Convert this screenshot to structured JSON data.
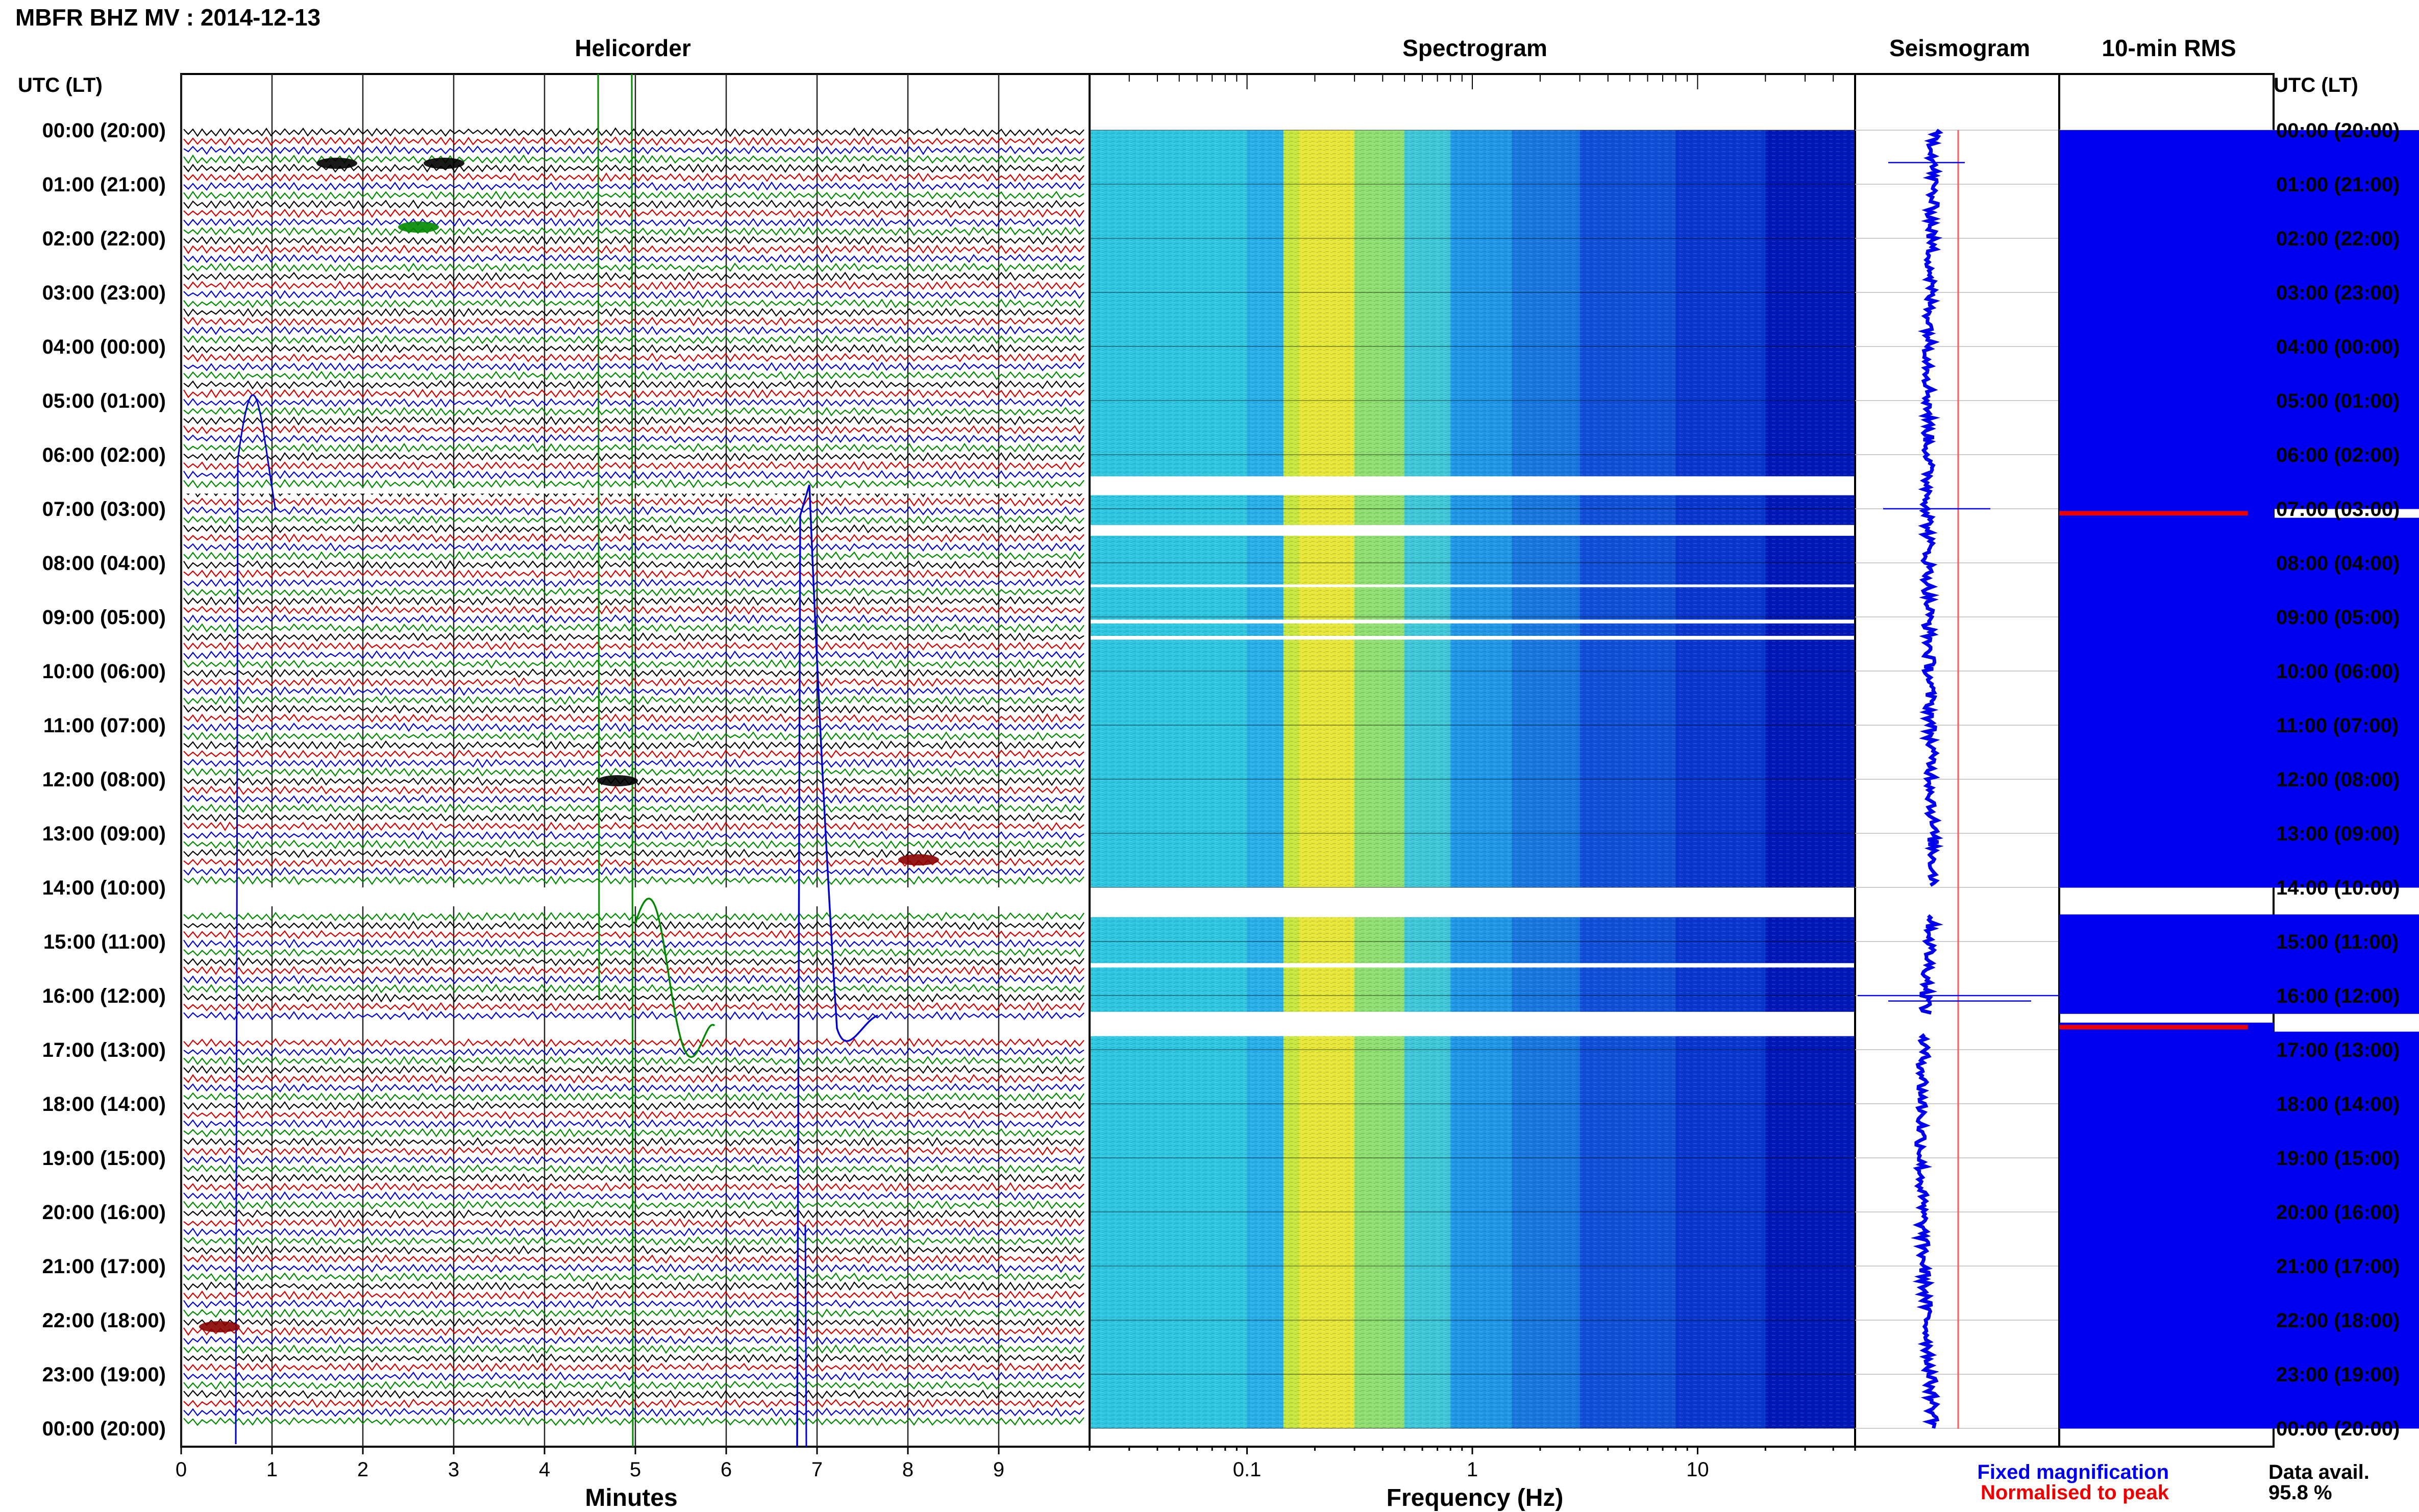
{
  "header": {
    "title": "MBFR BHZ MV : 2014-12-13",
    "utc_lt_label": "UTC (LT)"
  },
  "panels": {
    "helicorder": "Helicorder",
    "spectrogram": "Spectrogram",
    "seismogram": "Seismogram",
    "rms": "10-min RMS"
  },
  "legend": {
    "fixed_magnification": "Fixed magnification",
    "normalised_to_peak": "Normalised to peak",
    "fixed_color": "#0000ee",
    "normalised_color": "#ee0000"
  },
  "data_availability": {
    "label": "Data avail.",
    "value": "95.8 %"
  },
  "colors": {
    "trace_cycle": [
      "#000000",
      "#cc0000",
      "#0000cc",
      "#008800"
    ],
    "rms_fill": "#0000ee",
    "rms_peak": "#ee0000"
  },
  "chart_data": {
    "type": "heatmap",
    "time_labels": [
      "00:00 (20:00)",
      "01:00 (21:00)",
      "02:00 (22:00)",
      "03:00 (23:00)",
      "04:00 (00:00)",
      "05:00 (01:00)",
      "06:00 (02:00)",
      "07:00 (03:00)",
      "08:00 (04:00)",
      "09:00 (05:00)",
      "10:00 (06:00)",
      "11:00 (07:00)",
      "12:00 (08:00)",
      "13:00 (09:00)",
      "14:00 (10:00)",
      "15:00 (11:00)",
      "16:00 (12:00)",
      "17:00 (13:00)",
      "18:00 (14:00)",
      "19:00 (15:00)",
      "20:00 (16:00)",
      "21:00 (17:00)",
      "22:00 (18:00)",
      "23:00 (19:00)",
      "00:00 (20:00)"
    ],
    "helicorder": {
      "xlabel": "Minutes",
      "x_ticks": [
        0,
        1,
        2,
        3,
        4,
        5,
        6,
        7,
        8,
        9
      ],
      "xlim": [
        0,
        10
      ],
      "lines_per_hour": 6
    },
    "spectrogram": {
      "xlabel": "Frequency (Hz)",
      "x_scale": "log",
      "x_ticks": [
        0.1,
        1,
        10
      ],
      "x_tick_labels": [
        "0.1",
        "1",
        "10"
      ],
      "xlim": [
        0.02,
        50
      ],
      "gaps_hours": [
        [
          6.4,
          6.75
        ],
        [
          7.3,
          7.5
        ],
        [
          8.4,
          8.45
        ],
        [
          9.05,
          9.12
        ],
        [
          9.35,
          9.42
        ],
        [
          14.0,
          14.55
        ],
        [
          15.4,
          15.48
        ],
        [
          16.3,
          16.75
        ]
      ]
    },
    "data_gaps_hours": [
      [
        14.0,
        14.5
      ],
      [
        16.35,
        16.7
      ]
    ],
    "rms_10min": {
      "values": [
        0.3,
        0.3,
        0.31,
        0.28,
        0.28,
        0.3,
        0.29,
        0.32,
        0.34,
        0.3,
        0.33,
        0.36,
        0.31,
        0.3,
        0.29,
        0.29,
        0.3,
        0.3,
        0.3,
        0.3,
        0.29,
        0.29,
        0.29,
        0.29,
        0.28,
        0.28,
        0.29,
        0.28,
        0.28,
        0.29,
        0.28,
        0.3,
        0.3,
        0.29,
        0.31,
        0.29,
        0.28,
        0.28,
        0.28,
        0.27,
        0.27,
        0.28,
        1.0,
        0.26,
        0.26,
        0.26,
        0.26,
        0.26,
        0.27,
        0.27,
        0.27,
        0.27,
        0.28,
        0.28,
        0.27,
        0.27,
        0.27,
        0.28,
        0.27,
        0.27,
        0.27,
        0.27,
        0.27,
        0.27,
        0.28,
        0.27,
        0.27,
        0.27,
        0.27,
        0.27,
        0.27,
        0.27,
        0.26,
        0.26,
        0.26,
        0.26,
        0.27,
        0.26,
        0.26,
        0.26,
        0.26,
        0.27,
        0.31,
        0.26,
        0.0,
        0.0,
        0.0,
        0.27,
        0.27,
        0.27,
        0.27,
        0.27,
        0.27,
        0.27,
        0.27,
        0.27,
        0.27,
        0.27,
        0.0,
        1.0,
        0.26,
        0.26,
        0.26,
        0.26,
        0.26,
        0.26,
        0.26,
        0.26,
        0.26,
        0.26,
        0.26,
        0.26,
        0.26,
        0.26,
        0.26,
        0.26,
        0.26,
        0.27,
        0.26,
        0.26,
        0.25,
        0.26,
        0.25,
        0.26,
        0.26,
        0.26,
        0.25,
        0.25,
        0.26,
        0.25,
        0.25,
        0.25,
        0.25,
        0.25,
        0.32,
        0.25,
        0.25,
        0.25,
        0.25,
        0.25,
        0.25,
        0.25,
        0.25,
        0.25
      ],
      "normalised_peak_bins": [
        42,
        99
      ]
    }
  }
}
